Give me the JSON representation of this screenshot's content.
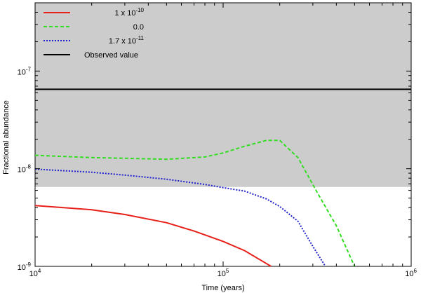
{
  "chart_data": {
    "type": "line",
    "title": "",
    "xlabel": "Time (years)",
    "ylabel": "Fractional abundance",
    "xscale": "log",
    "yscale": "log",
    "xlim": [
      10000,
      1000000
    ],
    "ylim": [
      1e-09,
      5e-07
    ],
    "x_ticks": [
      {
        "base": "10",
        "exp": "4",
        "value": 10000
      },
      {
        "base": "10",
        "exp": "5",
        "value": 100000
      },
      {
        "base": "10",
        "exp": "6",
        "value": 1000000
      }
    ],
    "y_ticks": [
      {
        "base": "10",
        "exp": "-9",
        "value": 1e-09
      },
      {
        "base": "10",
        "exp": "-8",
        "value": 1e-08
      },
      {
        "base": "10",
        "exp": "-7",
        "value": 1e-07
      }
    ],
    "shaded_band": {
      "y_min": 6.5e-09,
      "y_max": 5e-07,
      "color": "#cccccc"
    },
    "legend_position": "top-left",
    "series": [
      {
        "name": "1 x 10",
        "name_exp": "-10",
        "color": "#e8201a",
        "style": "solid",
        "x": [
          10000,
          20000,
          30000,
          50000,
          70000,
          100000,
          130000,
          180000
        ],
        "y": [
          4.2e-09,
          3.8e-09,
          3.4e-09,
          2.8e-09,
          2.3e-09,
          1.8e-09,
          1.45e-09,
          1e-09
        ]
      },
      {
        "name": "0.0",
        "name_exp": "",
        "color": "#33dd22",
        "style": "dashed",
        "x": [
          10000,
          20000,
          30000,
          50000,
          80000,
          100000,
          130000,
          170000,
          200000,
          250000,
          320000,
          400000,
          500000
        ],
        "y": [
          1.37e-08,
          1.3e-08,
          1.28e-08,
          1.25e-08,
          1.32e-08,
          1.45e-08,
          1.7e-08,
          1.95e-08,
          1.95e-08,
          1.3e-08,
          5.5e-09,
          2.6e-09,
          1e-09
        ]
      },
      {
        "name": "1.7 x 10",
        "name_exp": "-11",
        "color": "#2222cc",
        "style": "dotted",
        "x": [
          10000,
          20000,
          30000,
          50000,
          80000,
          100000,
          130000,
          170000,
          200000,
          250000,
          300000,
          350000
        ],
        "y": [
          9.9e-09,
          9.2e-09,
          8.6e-09,
          7.8e-09,
          6.9e-09,
          6.4e-09,
          5.9e-09,
          4.9e-09,
          4.1e-09,
          2.9e-09,
          1.6e-09,
          1e-09
        ]
      },
      {
        "name": "Observed value",
        "name_exp": "",
        "color": "#000000",
        "style": "solid",
        "x": [
          10000,
          1000000
        ],
        "y": [
          6.5e-08,
          6.5e-08
        ]
      }
    ]
  }
}
